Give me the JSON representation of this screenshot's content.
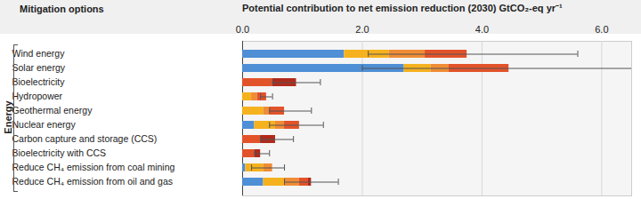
{
  "chart_data": {
    "type": "bar",
    "orientation": "horizontal",
    "stacked": true,
    "grid": true,
    "ylabel": "Mitigation options",
    "xlabel": "Potential contribution to net emission reduction (2030) GtCO₂-eq yr⁻¹",
    "group_label": "Energy",
    "categories": [
      "Wind energy",
      "Solar energy",
      "Bioelectricity",
      "Hydropower",
      "Geothermal energy",
      "Nuclear energy",
      "Carbon capture and storage (CCS)",
      "Bioelectricity with CCS",
      "Reduce CH₄ emission from coal mining",
      "Reduce CH₄ emission from oil and gas"
    ],
    "series": [
      {
        "color": "#4e8fd6",
        "values": [
          1.7,
          2.7,
          0,
          0,
          0,
          0.2,
          0,
          0,
          0.05,
          0.35
        ]
      },
      {
        "color": "#f5b11e",
        "values": [
          0.75,
          0.45,
          0,
          0.15,
          0.35,
          0.35,
          0,
          0,
          0.3,
          0.35
        ]
      },
      {
        "color": "#f08c35",
        "values": [
          0.6,
          0.3,
          0,
          0.1,
          0.1,
          0.15,
          0,
          0,
          0.15,
          0.25
        ]
      },
      {
        "color": "#e2532a",
        "values": [
          0.7,
          1.0,
          0.5,
          0.15,
          0.25,
          0.25,
          0.3,
          0.2,
          0,
          0.15
        ]
      },
      {
        "color": "#b02a1c",
        "values": [
          0,
          0,
          0.4,
          0,
          0,
          0,
          0.25,
          0.1,
          0,
          0.05
        ]
      }
    ],
    "error_low": [
      2.1,
      2.0,
      0.5,
      0.3,
      0.45,
      0.45,
      0.3,
      0.2,
      0.15,
      0.7
    ],
    "error_high": [
      5.6,
      6.5,
      1.3,
      0.5,
      1.15,
      1.35,
      0.85,
      0.45,
      0.7,
      1.6
    ],
    "xlim": [
      0,
      6.5
    ],
    "xticks": [
      0,
      2,
      4,
      6
    ]
  }
}
